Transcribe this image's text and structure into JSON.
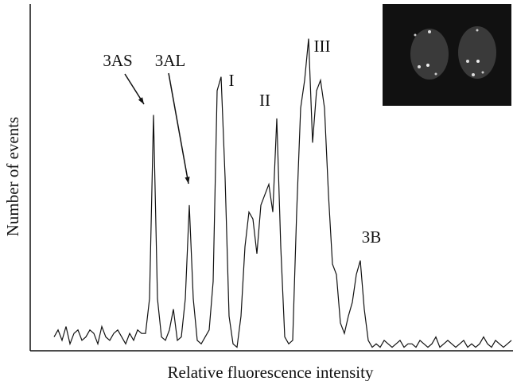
{
  "chart_data": {
    "type": "line",
    "xlabel": "Relative fluorescence intensity",
    "ylabel": "Number of events",
    "xlim": [
      -6,
      115.4
    ],
    "ylim": [
      0,
      100
    ],
    "color": "#111111",
    "annotations": [
      "3AS",
      "3AL",
      "I",
      "II",
      "III",
      "3B"
    ],
    "x": [
      0,
      1,
      2,
      3,
      4,
      5,
      6,
      7,
      8,
      9,
      10,
      11,
      12,
      13,
      14,
      15,
      16,
      17,
      18,
      19,
      20,
      21,
      22,
      23,
      24,
      25,
      26,
      27,
      28,
      29,
      30,
      31,
      32,
      33,
      34,
      35,
      36,
      37,
      38,
      39,
      40,
      41,
      42,
      43,
      44,
      45,
      46,
      47,
      48,
      49,
      50,
      51,
      52,
      53,
      54,
      55,
      56,
      57,
      58,
      59,
      60,
      61,
      62,
      63,
      64,
      65,
      66,
      67,
      68,
      69,
      70,
      71,
      72,
      73,
      74,
      75,
      76,
      77,
      78,
      79,
      80,
      81,
      82,
      83,
      84,
      85,
      86,
      87,
      88,
      89,
      90,
      91,
      92,
      93,
      94,
      95,
      96,
      97,
      98,
      99,
      100,
      101,
      102,
      103,
      104,
      105,
      106,
      107,
      108,
      109,
      110,
      111,
      112,
      113,
      114,
      115
    ],
    "values": [
      4,
      6,
      3,
      7,
      2,
      5,
      6,
      3,
      4,
      6,
      5,
      2,
      7,
      4,
      3,
      5,
      6,
      4,
      2,
      5,
      3,
      6,
      5,
      5,
      15,
      68,
      15,
      4,
      3,
      6,
      12,
      3,
      4,
      15,
      42,
      15,
      3,
      2,
      4,
      6,
      20,
      75,
      79,
      50,
      10,
      2,
      1,
      10,
      30,
      40,
      38,
      28,
      42,
      45,
      48,
      40,
      67,
      30,
      4,
      2,
      3,
      40,
      70,
      78,
      90,
      60,
      75,
      78,
      70,
      45,
      25,
      22,
      8,
      5,
      10,
      14,
      22,
      26,
      12,
      3,
      1,
      2,
      1,
      3,
      2,
      1,
      2,
      3,
      1,
      2,
      2,
      1,
      3,
      2,
      1,
      2,
      4,
      1,
      2,
      3,
      2,
      1,
      2,
      3,
      1,
      2,
      1,
      2,
      4,
      2,
      1,
      3,
      2,
      1,
      2,
      3
    ]
  }
}
